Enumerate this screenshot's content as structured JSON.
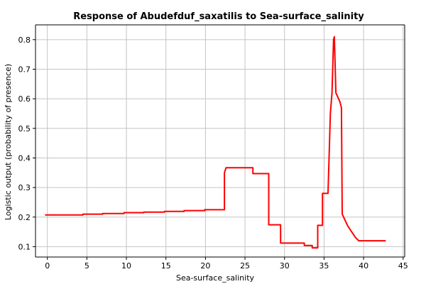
{
  "chart_data": {
    "type": "line",
    "title": "Response of Abudefduf_saxatilis to Sea-surface_salinity",
    "xlabel": "Sea-surface_salinity",
    "ylabel": "Logistic output (probability of presence)",
    "xlim": [
      -1.5,
      45.2
    ],
    "ylim": [
      0.065,
      0.85
    ],
    "xticks": [
      "0",
      "5",
      "10",
      "15",
      "20",
      "25",
      "30",
      "35",
      "40",
      "45"
    ],
    "yticks": [
      "0.1",
      "0.2",
      "0.3",
      "0.4",
      "0.5",
      "0.6",
      "0.7",
      "0.8"
    ],
    "grid": true,
    "series": [
      {
        "color": "#ff0000",
        "x": [
          -0.3,
          4.5,
          4.5,
          7.0,
          7.0,
          9.7,
          9.7,
          12.2,
          12.2,
          14.8,
          14.8,
          17.3,
          17.3,
          19.9,
          19.9,
          22.4,
          22.4,
          22.6,
          26.0,
          26.0,
          28.0,
          28.0,
          29.5,
          29.5,
          32.5,
          32.5,
          33.5,
          33.5,
          34.2,
          34.2,
          34.8,
          34.8,
          35.5,
          35.8,
          36.0,
          36.2,
          36.3,
          36.5,
          37.0,
          37.2,
          37.3,
          38.0,
          39.0,
          39.4,
          42.8
        ],
        "y": [
          0.207,
          0.207,
          0.21,
          0.21,
          0.212,
          0.212,
          0.215,
          0.215,
          0.217,
          0.217,
          0.219,
          0.219,
          0.222,
          0.222,
          0.225,
          0.225,
          0.35,
          0.367,
          0.367,
          0.347,
          0.347,
          0.174,
          0.174,
          0.112,
          0.112,
          0.104,
          0.104,
          0.096,
          0.096,
          0.172,
          0.172,
          0.28,
          0.28,
          0.55,
          0.62,
          0.8,
          0.81,
          0.62,
          0.59,
          0.57,
          0.21,
          0.17,
          0.13,
          0.12,
          0.12
        ]
      }
    ]
  }
}
